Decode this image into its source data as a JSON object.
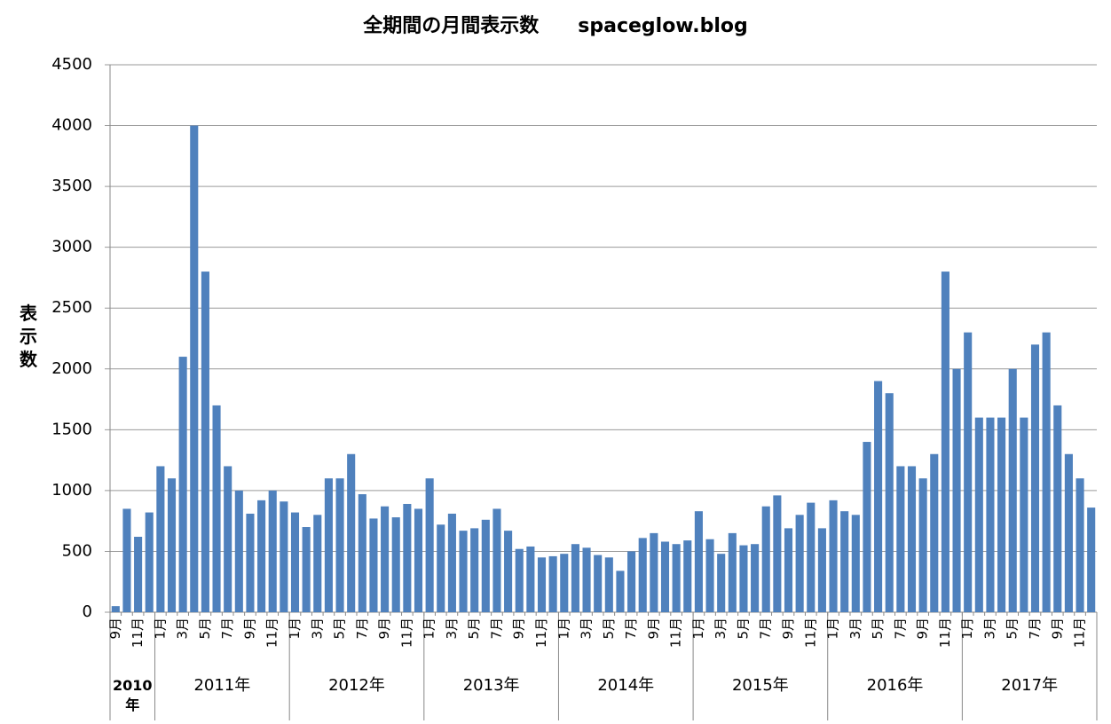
{
  "chart_data": {
    "type": "bar",
    "title": "全期間の月間表示数　　spaceglow.blog",
    "y_label": "表示数",
    "color": "#4f81bd",
    "grid": true,
    "ylim": [
      0,
      4500
    ],
    "yticks": [
      0,
      500,
      1000,
      1500,
      2000,
      2500,
      3000,
      3500,
      4000,
      4500
    ],
    "groups": [
      {
        "label": "2010年",
        "categories": [
          "9月",
          null,
          "11月",
          null
        ]
      },
      {
        "label": "2011年",
        "categories": [
          "1月",
          null,
          "3月",
          null,
          "5月",
          null,
          "7月",
          null,
          "9月",
          null,
          "11月",
          null
        ]
      },
      {
        "label": "2012年",
        "categories": [
          "1月",
          null,
          "3月",
          null,
          "5月",
          null,
          "7月",
          null,
          "9月",
          null,
          "11月",
          null
        ]
      },
      {
        "label": "2013年",
        "categories": [
          "1月",
          null,
          "3月",
          null,
          "5月",
          null,
          "7月",
          null,
          "9月",
          null,
          "11月",
          null
        ]
      },
      {
        "label": "2014年",
        "categories": [
          "1月",
          null,
          "3月",
          null,
          "5月",
          null,
          "7月",
          null,
          "9月",
          null,
          "11月",
          null
        ]
      },
      {
        "label": "2015年",
        "categories": [
          "1月",
          null,
          "3月",
          null,
          "5月",
          null,
          "7月",
          null,
          "9月",
          null,
          "11月",
          null
        ]
      },
      {
        "label": "2016年",
        "categories": [
          "1月",
          null,
          "3月",
          null,
          "5月",
          null,
          "7月",
          null,
          "9月",
          null,
          "11月",
          null
        ]
      },
      {
        "label": "2017年",
        "categories": [
          "1月",
          null,
          "3月",
          null,
          "5月",
          null,
          "7月",
          null,
          "9月",
          null,
          "11月",
          null
        ]
      }
    ],
    "values": [
      50,
      850,
      620,
      820,
      1200,
      1100,
      2100,
      4000,
      2800,
      1700,
      1200,
      1000,
      810,
      920,
      1000,
      910,
      820,
      700,
      800,
      1100,
      1100,
      1300,
      970,
      770,
      870,
      780,
      890,
      850,
      1100,
      720,
      810,
      670,
      690,
      760,
      850,
      670,
      520,
      540,
      450,
      460,
      480,
      560,
      530,
      470,
      450,
      340,
      500,
      610,
      650,
      580,
      560,
      590,
      830,
      600,
      480,
      650,
      550,
      560,
      870,
      960,
      690,
      800,
      900,
      690,
      920,
      830,
      800,
      1400,
      1900,
      1800,
      1200,
      1200,
      1100,
      1300,
      2800,
      2000,
      2300,
      1600,
      1600,
      1600,
      2000,
      1600,
      2200,
      2300,
      1700,
      1300,
      1100,
      860
    ]
  }
}
